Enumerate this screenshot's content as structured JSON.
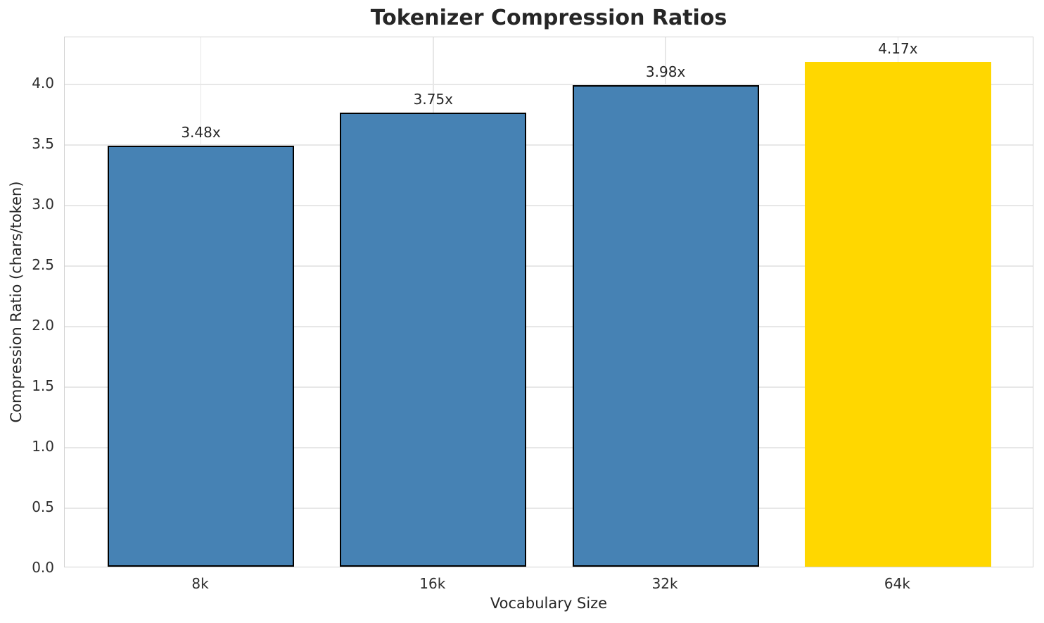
{
  "chart_data": {
    "type": "bar",
    "title": "Tokenizer Compression Ratios",
    "xlabel": "Vocabulary Size",
    "ylabel": "Compression Ratio (chars/token)",
    "categories": [
      "8k",
      "16k",
      "32k",
      "64k"
    ],
    "values": [
      3.48,
      3.75,
      3.98,
      4.17
    ],
    "bar_labels": [
      "3.48x",
      "3.75x",
      "3.98x",
      "4.17x"
    ],
    "bar_colors": [
      "#4682B4",
      "#4682B4",
      "#4682B4",
      "#FFD700"
    ],
    "bar_edge_colors": [
      "#000000",
      "#000000",
      "#000000",
      "none"
    ],
    "ytick_labels": [
      "0.0",
      "0.5",
      "1.0",
      "1.5",
      "2.0",
      "2.5",
      "3.0",
      "3.5",
      "4.0"
    ],
    "yticks": [
      0,
      0.5,
      1,
      1.5,
      2,
      2.5,
      3,
      3.5,
      4
    ],
    "ylim": [
      0,
      4.386
    ],
    "grid": "both",
    "legend_position": "none",
    "colors": {
      "bar_default": "#4682B4",
      "bar_highlight": "#FFD700",
      "grid": "#e7e7e7",
      "spine": "#d2d2d2",
      "text": "#262626"
    }
  }
}
